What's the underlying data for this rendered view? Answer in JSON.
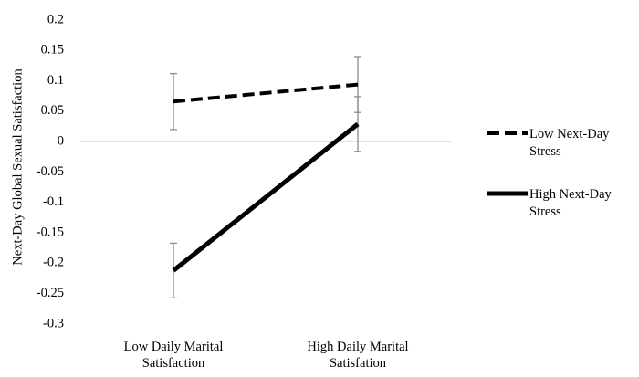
{
  "chart_data": {
    "type": "line",
    "title": "",
    "ylabel": "Next-Day Global Sexual Satisfaction",
    "xlabel": "",
    "categories": [
      "Low Daily Marital Satisfaction",
      "High Daily Marital Satisfation"
    ],
    "category_lines": [
      [
        "Low Daily Marital",
        "Satisfaction"
      ],
      [
        "High Daily Marital",
        "Satisfation"
      ]
    ],
    "ylim": [
      -0.3,
      0.2
    ],
    "yticks": [
      0.2,
      0.15,
      0.1,
      0.05,
      0,
      -0.05,
      -0.1,
      -0.15,
      -0.2,
      -0.25,
      -0.3
    ],
    "ytick_labels": [
      "0.2",
      "0.15",
      "0.1",
      "0.05",
      "0",
      "-0.05",
      "-0.1",
      "-0.15",
      "-0.2",
      "-0.25",
      "-0.3"
    ],
    "grid": false,
    "zero_line": true,
    "legend_position": "right",
    "series": [
      {
        "name": "Low Next-Day Stress",
        "legend_lines": [
          "Low Next-Day",
          "Stress"
        ],
        "style": "dashed",
        "color": "#000000",
        "values": [
          0.066,
          0.094
        ],
        "error": [
          0.046,
          0.046
        ]
      },
      {
        "name": "High Next-Day Stress",
        "legend_lines": [
          "High Next-Day",
          "Stress"
        ],
        "style": "solid",
        "color": "#000000",
        "values": [
          -0.212,
          0.029
        ],
        "error": [
          0.045,
          0.045
        ]
      }
    ]
  }
}
